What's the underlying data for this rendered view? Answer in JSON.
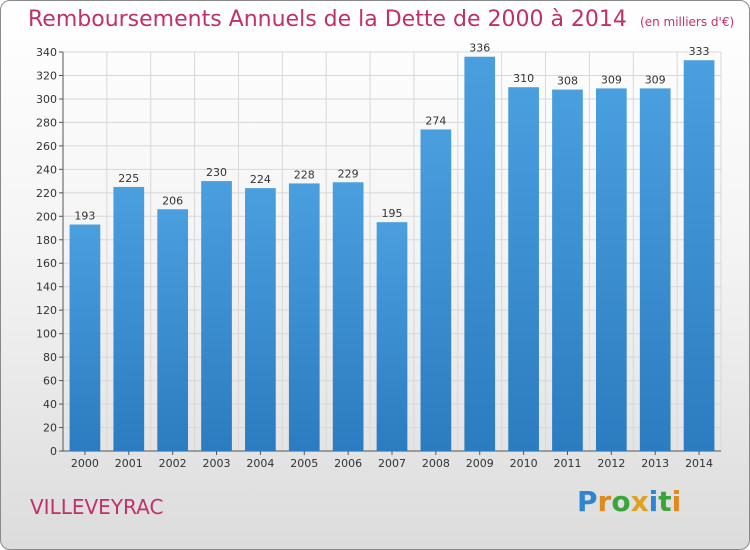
{
  "chart_data": {
    "type": "bar",
    "title": "Remboursements Annuels de la Dette de 2000 à 2014",
    "unit_note": "(en milliers d'€)",
    "categories": [
      "2000",
      "2001",
      "2002",
      "2003",
      "2004",
      "2005",
      "2006",
      "2007",
      "2008",
      "2009",
      "2010",
      "2011",
      "2012",
      "2013",
      "2014"
    ],
    "values": [
      193,
      225,
      206,
      230,
      224,
      228,
      229,
      195,
      274,
      336,
      310,
      308,
      309,
      309,
      333
    ],
    "ylim": [
      0,
      340
    ],
    "ytick_step": 20,
    "grid": true,
    "bar_color": "#4a9fdf",
    "bar_color_dark": "#2b7cc0",
    "title_color": "#c0306a"
  },
  "footer": {
    "place": "VILLEVEYRAC",
    "logo_letters": [
      {
        "ch": "P",
        "color": "#2f86d0"
      },
      {
        "ch": "r",
        "color": "#e08a1e"
      },
      {
        "ch": "o",
        "color": "#3aa53a"
      },
      {
        "ch": "x",
        "color": "#e0a21e"
      },
      {
        "ch": "i",
        "color": "#2f86d0"
      },
      {
        "ch": "t",
        "color": "#3aa53a"
      },
      {
        "ch": "i",
        "color": "#e08a1e"
      }
    ]
  }
}
